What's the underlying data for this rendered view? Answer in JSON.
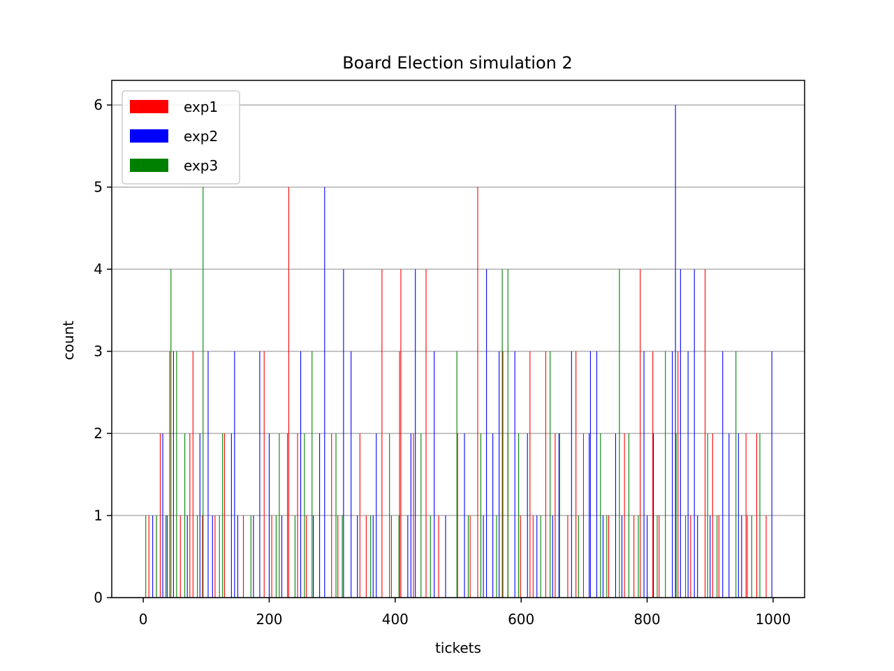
{
  "chart_data": {
    "type": "bar",
    "title": "Board Election simulation 2",
    "xlabel": "tickets",
    "ylabel": "count",
    "xlim": [
      -50,
      1050
    ],
    "ylim": [
      0,
      6.3
    ],
    "xticks": [
      0,
      200,
      400,
      600,
      800,
      1000
    ],
    "yticks": [
      0,
      1,
      2,
      3,
      4,
      5,
      6
    ],
    "grid": "y",
    "legend_position": "top-left",
    "colors": {
      "exp1": "#ff0000",
      "exp2": "#0000ff",
      "exp3": "#008000"
    },
    "series": [
      {
        "name": "exp1",
        "x": [
          232,
          532,
          380,
          410,
          450,
          790,
          893,
          43,
          80,
          193,
          408,
          572,
          615,
          640,
          688,
          810,
          850,
          28,
          75,
          130,
          230,
          246,
          300,
          345,
          430,
          500,
          580,
          655,
          700,
          765,
          905,
          958,
          975,
          10,
          22,
          60,
          95,
          115,
          160,
          205,
          260,
          310,
          355,
          395,
          470,
          520,
          600,
          620,
          675,
          740,
          780,
          820,
          870,
          915,
          960,
          990
        ],
        "values": [
          5,
          5,
          4,
          4,
          4,
          4,
          4,
          3,
          3,
          3,
          3,
          3,
          3,
          3,
          3,
          3,
          3,
          2,
          2,
          2,
          2,
          2,
          2,
          2,
          2,
          2,
          2,
          2,
          2,
          2,
          2,
          2,
          2,
          1,
          1,
          1,
          1,
          1,
          1,
          1,
          1,
          1,
          1,
          1,
          1,
          1,
          1,
          1,
          1,
          1,
          1,
          1,
          1,
          1,
          1,
          1
        ]
      },
      {
        "name": "exp2",
        "x": [
          845,
          288,
          318,
          432,
          545,
          853,
          875,
          48,
          103,
          145,
          185,
          250,
          330,
          462,
          565,
          590,
          680,
          710,
          720,
          795,
          840,
          865,
          920,
          998,
          31,
          90,
          140,
          200,
          280,
          370,
          425,
          510,
          555,
          610,
          660,
          708,
          750,
          810,
          930,
          945,
          15,
          38,
          70,
          110,
          150,
          175,
          220,
          270,
          340,
          365,
          420,
          480,
          540,
          625,
          650,
          730,
          760,
          800,
          880,
          900,
          950
        ],
        "values": [
          6,
          5,
          4,
          4,
          4,
          4,
          4,
          3,
          3,
          3,
          3,
          3,
          3,
          3,
          3,
          3,
          3,
          3,
          3,
          3,
          3,
          3,
          3,
          3,
          2,
          2,
          2,
          2,
          2,
          2,
          2,
          2,
          2,
          2,
          2,
          2,
          2,
          2,
          2,
          2,
          1,
          1,
          1,
          1,
          1,
          1,
          1,
          1,
          1,
          1,
          1,
          1,
          1,
          1,
          1,
          1,
          1,
          1,
          1,
          1,
          1
        ]
      },
      {
        "name": "exp3",
        "x": [
          94,
          43,
          569,
          578,
          755,
          52,
          267,
          497,
          645,
          828,
          940,
          65,
          125,
          215,
          255,
          305,
          390,
          440,
          535,
          595,
          660,
          725,
          770,
          845,
          895,
          978,
          3,
          20,
          35,
          85,
          120,
          170,
          210,
          240,
          315,
          360,
          405,
          455,
          515,
          560,
          630,
          690,
          735,
          785,
          815,
          860,
          910,
          965
        ],
        "values": [
          5,
          4,
          4,
          4,
          4,
          3,
          3,
          3,
          3,
          3,
          3,
          2,
          2,
          2,
          2,
          2,
          2,
          2,
          2,
          2,
          2,
          2,
          2,
          2,
          2,
          2,
          1,
          1,
          1,
          1,
          1,
          1,
          1,
          1,
          1,
          1,
          1,
          1,
          1,
          1,
          1,
          1,
          1,
          1,
          1,
          1,
          1,
          1
        ]
      }
    ]
  }
}
